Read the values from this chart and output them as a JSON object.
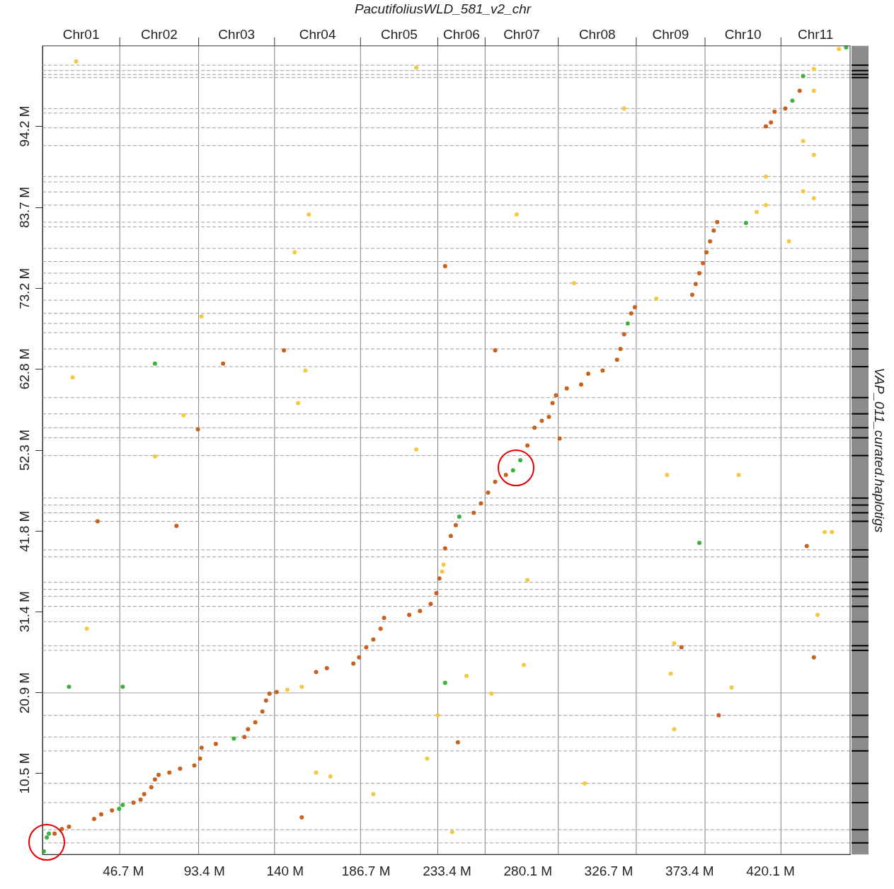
{
  "chart_data": {
    "type": "scatter",
    "x2label": "PacutifoliusWLD_581_v2_chr",
    "y2label": "VAP_011_curated.haplotigs",
    "marker": "circle",
    "grid": false,
    "legend": false,
    "xlim": [
      0,
      466
    ],
    "ylim": [
      0,
      104.6
    ],
    "xticks": [
      {
        "value": 46.7,
        "label": "46.7 M"
      },
      {
        "value": 93.4,
        "label": "93.4 M"
      },
      {
        "value": 140,
        "label": "140 M"
      },
      {
        "value": 186.7,
        "label": "186.7 M"
      },
      {
        "value": 233.4,
        "label": "233.4 M"
      },
      {
        "value": 280.1,
        "label": "280.1 M"
      },
      {
        "value": 326.7,
        "label": "326.7 M"
      },
      {
        "value": 373.4,
        "label": "373.4 M"
      },
      {
        "value": 420.1,
        "label": "420.1 M"
      }
    ],
    "yticks": [
      {
        "value": 10.5,
        "label": "10.5 M"
      },
      {
        "value": 20.9,
        "label": "20.9 M"
      },
      {
        "value": 31.4,
        "label": "31.4 M"
      },
      {
        "value": 41.8,
        "label": "41.8 M"
      },
      {
        "value": 52.3,
        "label": "52.3 M"
      },
      {
        "value": 62.8,
        "label": "62.8 M"
      },
      {
        "value": 73.2,
        "label": "73.2 M"
      },
      {
        "value": 83.7,
        "label": "83.7 M"
      },
      {
        "value": 94.2,
        "label": "94.2 M"
      }
    ],
    "annotations": [
      "Chr01",
      "Chr02",
      "Chr03",
      "Chr04",
      "Chr05",
      "Chr06",
      "Chr07",
      "Chr08",
      "Chr09",
      "Chr10",
      "Chr11"
    ],
    "ref_lines": [
      {
        "axis": "x",
        "value": 44.6,
        "color": "#808080",
        "line_style": "solid"
      },
      {
        "axis": "x",
        "value": 90.1,
        "color": "#808080",
        "line_style": "solid"
      },
      {
        "axis": "x",
        "value": 133.9,
        "color": "#808080",
        "line_style": "solid"
      },
      {
        "axis": "x",
        "value": 183.5,
        "color": "#808080",
        "line_style": "solid"
      },
      {
        "axis": "x",
        "value": 228.1,
        "color": "#808080",
        "line_style": "solid"
      },
      {
        "axis": "x",
        "value": 255.4,
        "color": "#808080",
        "line_style": "solid"
      },
      {
        "axis": "x",
        "value": 297.6,
        "color": "#808080",
        "line_style": "solid"
      },
      {
        "axis": "x",
        "value": 342.6,
        "color": "#808080",
        "line_style": "solid"
      },
      {
        "axis": "x",
        "value": 382.3,
        "color": "#808080",
        "line_style": "solid"
      },
      {
        "axis": "x",
        "value": 426.1,
        "color": "#808080",
        "line_style": "solid"
      },
      {
        "axis": "y",
        "value": 102.1,
        "color": "#a0a0a0",
        "line_style": "dashed"
      },
      {
        "axis": "y",
        "value": 101.4,
        "color": "#a0a0a0",
        "line_style": "dashed"
      },
      {
        "axis": "y",
        "value": 100.9,
        "color": "#a0a0a0",
        "line_style": "dashed"
      },
      {
        "axis": "y",
        "value": 100.5,
        "color": "#a0a0a0",
        "line_style": "dashed"
      },
      {
        "axis": "y",
        "value": 96.5,
        "color": "#a0a0a0",
        "line_style": "dashed"
      },
      {
        "axis": "y",
        "value": 95.9,
        "color": "#a0a0a0",
        "line_style": "dashed"
      },
      {
        "axis": "y",
        "value": 94.0,
        "color": "#a0a0a0",
        "line_style": "dashed"
      },
      {
        "axis": "y",
        "value": 91.7,
        "color": "#a0a0a0",
        "line_style": "dashed"
      },
      {
        "axis": "y",
        "value": 87.7,
        "color": "#a0a0a0",
        "line_style": "dashed"
      },
      {
        "axis": "y",
        "value": 87.0,
        "color": "#a0a0a0",
        "line_style": "dashed"
      },
      {
        "axis": "y",
        "value": 85.7,
        "color": "#a0a0a0",
        "line_style": "dashed"
      },
      {
        "axis": "y",
        "value": 84.0,
        "color": "#a0a0a0",
        "line_style": "dashed"
      },
      {
        "axis": "y",
        "value": 81.8,
        "color": "#a0a0a0",
        "line_style": "dashed"
      },
      {
        "axis": "y",
        "value": 81.2,
        "color": "#a0a0a0",
        "line_style": "dashed"
      },
      {
        "axis": "y",
        "value": 78.4,
        "color": "#a0a0a0",
        "line_style": "dashed"
      },
      {
        "axis": "y",
        "value": 76.7,
        "color": "#a0a0a0",
        "line_style": "dashed"
      },
      {
        "axis": "y",
        "value": 75.2,
        "color": "#a0a0a0",
        "line_style": "dashed"
      },
      {
        "axis": "y",
        "value": 73.9,
        "color": "#a0a0a0",
        "line_style": "dashed"
      },
      {
        "axis": "y",
        "value": 71.7,
        "color": "#a0a0a0",
        "line_style": "dashed"
      },
      {
        "axis": "y",
        "value": 70.0,
        "color": "#a0a0a0",
        "line_style": "dashed"
      },
      {
        "axis": "y",
        "value": 68.7,
        "color": "#a0a0a0",
        "line_style": "dashed"
      },
      {
        "axis": "y",
        "value": 67.5,
        "color": "#a0a0a0",
        "line_style": "dashed"
      },
      {
        "axis": "y",
        "value": 65.4,
        "color": "#a0a0a0",
        "line_style": "dashed"
      },
      {
        "axis": "y",
        "value": 63.1,
        "color": "#a0a0a0",
        "line_style": "dashed"
      },
      {
        "axis": "y",
        "value": 59.1,
        "color": "#a0a0a0",
        "line_style": "dashed"
      },
      {
        "axis": "y",
        "value": 57.0,
        "color": "#a0a0a0",
        "line_style": "dashed"
      },
      {
        "axis": "y",
        "value": 55.2,
        "color": "#a0a0a0",
        "line_style": "dashed"
      },
      {
        "axis": "y",
        "value": 53.9,
        "color": "#a0a0a0",
        "line_style": "dashed"
      },
      {
        "axis": "y",
        "value": 51.6,
        "color": "#a0a0a0",
        "line_style": "dashed"
      },
      {
        "axis": "y",
        "value": 46.1,
        "color": "#a0a0a0",
        "line_style": "dashed"
      },
      {
        "axis": "y",
        "value": 45.2,
        "color": "#a0a0a0",
        "line_style": "dashed"
      },
      {
        "axis": "y",
        "value": 44.2,
        "color": "#a0a0a0",
        "line_style": "dashed"
      },
      {
        "axis": "y",
        "value": 43.1,
        "color": "#a0a0a0",
        "line_style": "dashed"
      },
      {
        "axis": "y",
        "value": 39.4,
        "color": "#a0a0a0",
        "line_style": "dashed"
      },
      {
        "axis": "y",
        "value": 38.5,
        "color": "#a0a0a0",
        "line_style": "dashed"
      },
      {
        "axis": "y",
        "value": 35.2,
        "color": "#a0a0a0",
        "line_style": "dashed"
      },
      {
        "axis": "y",
        "value": 34.3,
        "color": "#a0a0a0",
        "line_style": "dashed"
      },
      {
        "axis": "y",
        "value": 33.4,
        "color": "#a0a0a0",
        "line_style": "dashed"
      },
      {
        "axis": "y",
        "value": 32.1,
        "color": "#a0a0a0",
        "line_style": "dashed"
      },
      {
        "axis": "y",
        "value": 30.1,
        "color": "#a0a0a0",
        "line_style": "dashed"
      },
      {
        "axis": "y",
        "value": 27.0,
        "color": "#a0a0a0",
        "line_style": "dashed"
      },
      {
        "axis": "y",
        "value": 26.4,
        "color": "#a0a0a0",
        "line_style": "dashed"
      },
      {
        "axis": "y",
        "value": 20.9,
        "color": "#a0a0a0",
        "line_style": "solid"
      },
      {
        "axis": "y",
        "value": 18.0,
        "color": "#a0a0a0",
        "line_style": "dashed"
      },
      {
        "axis": "y",
        "value": 15.2,
        "color": "#a0a0a0",
        "line_style": "dashed"
      },
      {
        "axis": "y",
        "value": 13.4,
        "color": "#a0a0a0",
        "line_style": "dashed"
      },
      {
        "axis": "y",
        "value": 9.2,
        "color": "#a0a0a0",
        "line_style": "dashed"
      },
      {
        "axis": "y",
        "value": 6.7,
        "color": "#a0a0a0",
        "line_style": "dashed"
      },
      {
        "axis": "y",
        "value": 3.2,
        "color": "#a0a0a0",
        "line_style": "dashed"
      },
      {
        "axis": "y",
        "value": 1.5,
        "color": "#a0a0a0",
        "line_style": "dashed"
      }
    ],
    "series": [
      {
        "color": "#f5c842",
        "x": [
          141.3,
          149.6,
          230.6,
          231.4,
          354.2,
          412.1,
          417.4,
          417.4,
          445.1,
          445.1,
          438.9,
          438.9,
          445.1,
          445.1,
          459.6,
          19.4,
          17.4,
          25.6,
          64.9,
          81.4,
          91.8,
          145.5,
          153.7,
          147.5,
          151.7,
          157.9,
          166.1,
          190.9,
          215.7,
          215.7,
          221.9,
          228.1,
          236.4,
          244.7,
          259.1,
          273.6,
          277.7,
          279.8,
          306.7,
          312.9,
          335.6,
          360.4,
          362.5,
          364.5,
          397.6,
          430.7,
          447.2,
          451.3,
          455.5,
          401.7,
          364.5
        ],
        "values": [
          21.3,
          21.7,
          36.6,
          37.5,
          71.9,
          83.1,
          84.0,
          87.7,
          101.6,
          98.8,
          92.3,
          85.8,
          90.5,
          84.9,
          104.2,
          102.6,
          61.7,
          29.2,
          51.5,
          56.8,
          69.6,
          77.9,
          82.8,
          58.4,
          62.6,
          10.6,
          10.1,
          7.8,
          101.8,
          52.4,
          12.4,
          18.0,
          2.9,
          23.1,
          20.8,
          82.8,
          24.5,
          35.5,
          73.9,
          9.2,
          96.5,
          49.1,
          23.4,
          16.2,
          21.6,
          79.3,
          31.0,
          41.7,
          41.7,
          49.1,
          27.3
        ]
      },
      {
        "color": "#c8601e",
        "x": [
          7.0,
          11.2,
          15.3,
          29.8,
          33.9,
          40.1,
          52.5,
          56.6,
          58.7,
          62.8,
          64.9,
          67.0,
          73.2,
          79.4,
          87.6,
          90.9,
          91.8,
          100.0,
          116.5,
          118.6,
          122.8,
          126.9,
          129.0,
          131.0,
          135.1,
          157.9,
          164.1,
          179.4,
          182.7,
          186.8,
          190.9,
          195.1,
          197.1,
          211.6,
          217.8,
          224.0,
          227.3,
          229.0,
          232.3,
          235.6,
          238.5,
          248.8,
          253.0,
          257.1,
          261.2,
          267.4,
          279.8,
          283.9,
          288.1,
          292.2,
          294.3,
          296.3,
          302.5,
          310.8,
          314.9,
          323.2,
          331.5,
          333.5,
          335.6,
          339.7,
          341.8,
          374.9,
          376.9,
          379.0,
          381.1,
          383.1,
          385.2,
          387.3,
          389.3,
          417.4,
          420.3,
          422.4,
          428.6,
          436.9,
          31.8,
          77.3,
          104.2,
          89.7,
          139.3,
          149.6,
          232.3,
          239.7,
          261.2,
          298.4,
          441.0,
          445.1,
          368.7,
          390.2
        ],
        "values": [
          2.7,
          3.3,
          3.6,
          4.6,
          5.2,
          5.7,
          6.7,
          7.1,
          7.8,
          8.7,
          9.7,
          10.3,
          10.6,
          11.1,
          11.5,
          12.4,
          13.8,
          14.3,
          15.2,
          16.2,
          17.1,
          18.5,
          19.9,
          20.8,
          21.0,
          23.6,
          24.1,
          24.7,
          25.5,
          26.8,
          27.8,
          29.2,
          30.6,
          31.0,
          31.5,
          32.4,
          33.8,
          35.7,
          39.6,
          41.2,
          42.6,
          44.2,
          45.4,
          46.8,
          48.2,
          49.1,
          52.9,
          55.2,
          56.1,
          56.6,
          58.4,
          59.4,
          60.3,
          60.8,
          62.2,
          62.6,
          64.0,
          65.4,
          67.3,
          70.0,
          70.8,
          72.4,
          73.8,
          75.2,
          76.5,
          77.9,
          79.3,
          80.7,
          81.8,
          94.2,
          94.7,
          96.1,
          96.5,
          98.8,
          43.1,
          42.5,
          63.5,
          55.0,
          65.2,
          4.8,
          76.1,
          14.5,
          65.2,
          53.8,
          39.9,
          25.5,
          26.8,
          18.0
        ]
      },
      {
        "color": "#3cb43c",
        "x": [
          0.8,
          2.5,
          3.7,
          44.2,
          46.3,
          110.4,
          240.5,
          271.5,
          275.7,
          337.7,
          405.9,
          432.7,
          438.9,
          463.7,
          15.3,
          46.3,
          64.9,
          232.3,
          379.0
        ],
        "values": [
          0.4,
          2.2,
          2.7,
          5.9,
          6.4,
          15.0,
          43.7,
          49.7,
          51.0,
          68.7,
          81.7,
          97.5,
          100.7,
          104.4,
          21.7,
          21.7,
          63.5,
          22.2,
          40.3
        ]
      }
    ]
  }
}
